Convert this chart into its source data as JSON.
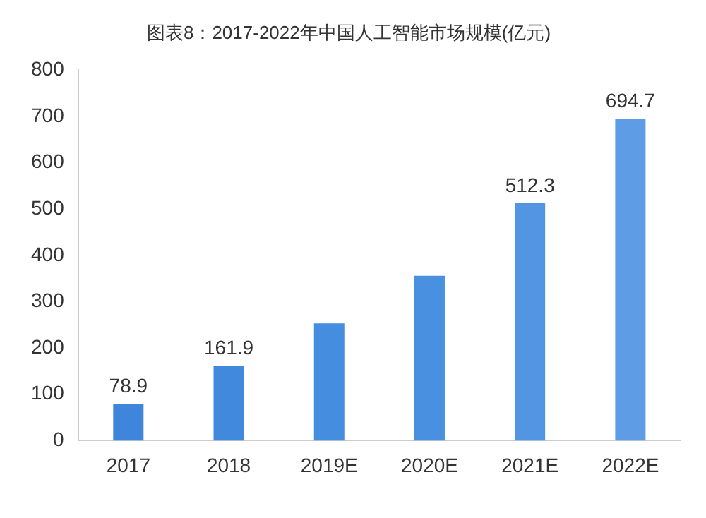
{
  "chart_data": {
    "type": "bar",
    "title": "图表8：2017-2022年中国人工智能市场规模(亿元)",
    "categories": [
      "2017",
      "2018",
      "2019E",
      "2020E",
      "2021E",
      "2022E"
    ],
    "values": [
      78.9,
      161.9,
      253,
      356,
      512.3,
      694.7
    ],
    "value_labels": [
      "78.9",
      "161.9",
      null,
      null,
      "512.3",
      "694.7"
    ],
    "colors": [
      "#3f85db",
      "#4189dd",
      "#458ddf",
      "#4a90e1",
      "#5296e3",
      "#5e9de6"
    ],
    "ylim": [
      0,
      800
    ],
    "yticks": [
      0,
      100,
      200,
      300,
      400,
      500,
      600,
      700,
      800
    ],
    "grid": false
  }
}
